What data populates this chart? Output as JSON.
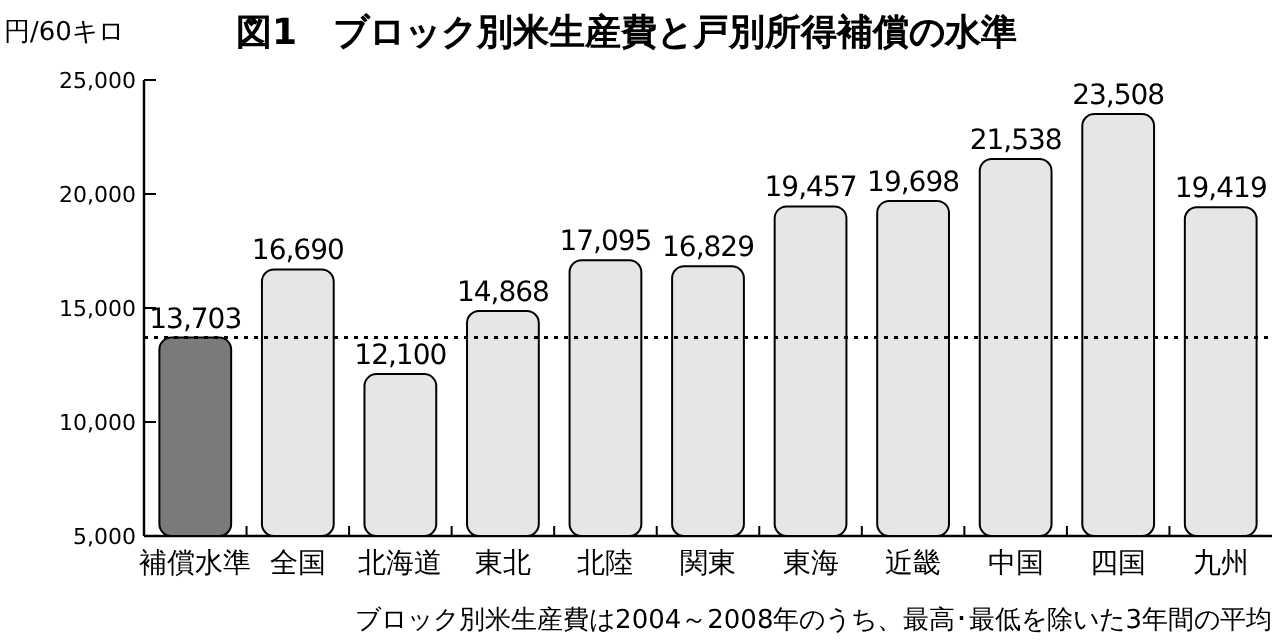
{
  "chart_data": {
    "type": "bar",
    "title": "図1　ブロック別米生産費と戸別所得補償の水準",
    "ylabel": "円/60キロ",
    "categories": [
      "補償水準",
      "全国",
      "北海道",
      "東北",
      "北陸",
      "関東",
      "東海",
      "近畿",
      "中国",
      "四国",
      "九州"
    ],
    "values": [
      13703,
      16690,
      12100,
      14868,
      17095,
      16829,
      19457,
      19698,
      21538,
      23508,
      19419
    ],
    "colors": [
      "#7a7a7a",
      "#e6e6e6",
      "#e6e6e6",
      "#e6e6e6",
      "#e6e6e6",
      "#e6e6e6",
      "#e6e6e6",
      "#e6e6e6",
      "#e6e6e6",
      "#e6e6e6",
      "#e6e6e6"
    ],
    "value_labels": [
      "13,703",
      "16,690",
      "12,100",
      "14,868",
      "17,095",
      "16,829",
      "19,457",
      "19,698",
      "21,538",
      "23,508",
      "19,419"
    ],
    "ylim": [
      5000,
      25000
    ],
    "yticks": [
      {
        "value": 5000,
        "label": "5,000"
      },
      {
        "value": 10000,
        "label": "10,000"
      },
      {
        "value": 15000,
        "label": "15,000"
      },
      {
        "value": 20000,
        "label": "20,000"
      },
      {
        "value": 25000,
        "label": "25,000"
      }
    ],
    "ref_lines": [
      {
        "axis": "y",
        "value": 13703,
        "color": "#000000",
        "line_style": "dotted"
      }
    ],
    "grid": false,
    "annotations": [
      "ブロック別米生産費は2004～2008年のうち、最高･最低を除いた3年間の平均"
    ]
  }
}
